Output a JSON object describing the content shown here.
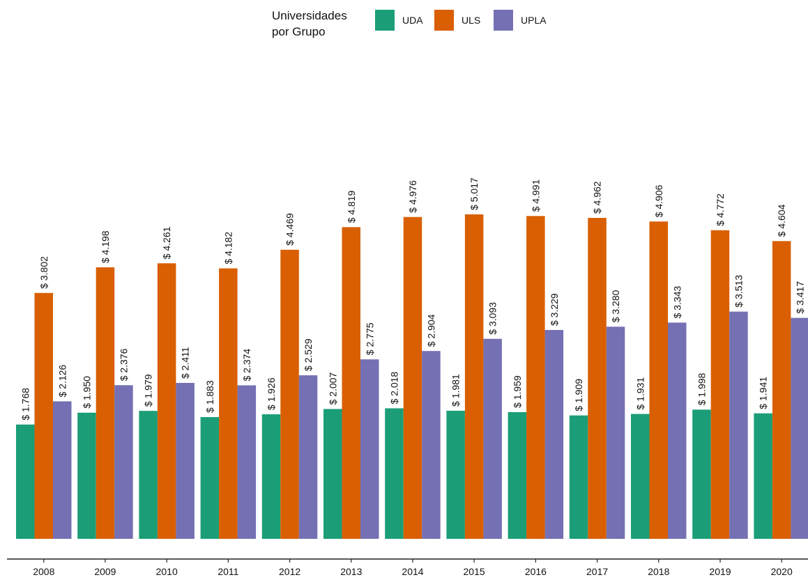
{
  "chart_data": {
    "type": "bar",
    "title": "",
    "xlabel": "",
    "ylabel": "",
    "ylim": [
      0,
      5200
    ],
    "grid": false,
    "legend": {
      "title_lines": [
        "Universidades",
        "por Grupo"
      ],
      "placement": "top-center"
    },
    "categories": [
      "2008",
      "2009",
      "2010",
      "2011",
      "2012",
      "2013",
      "2014",
      "2015",
      "2016",
      "2017",
      "2018",
      "2019",
      "2020"
    ],
    "series": [
      {
        "name": "UDA",
        "color": "#1b9e77",
        "values": [
          1768,
          1950,
          1979,
          1883,
          1926,
          2007,
          2018,
          1981,
          1959,
          1909,
          1931,
          1998,
          1941
        ],
        "labels": [
          "$ 1.768",
          "$ 1.950",
          "$ 1.979",
          "$ 1.883",
          "$ 1.926",
          "$ 2.007",
          "$ 2.018",
          "$ 1.981",
          "$ 1.959",
          "$ 1.909",
          "$ 1.931",
          "$ 1.998",
          "$ 1.941"
        ]
      },
      {
        "name": "ULS",
        "color": "#d95f02",
        "values": [
          3802,
          4198,
          4261,
          4182,
          4469,
          4819,
          4976,
          5017,
          4991,
          4962,
          4906,
          4772,
          4604
        ],
        "labels": [
          "$ 3.802",
          "$ 4.198",
          "$ 4.261",
          "$ 4.182",
          "$ 4.469",
          "$ 4.819",
          "$ 4.976",
          "$ 5.017",
          "$ 4.991",
          "$ 4.962",
          "$ 4.906",
          "$ 4.772",
          "$ 4.604"
        ]
      },
      {
        "name": "UPLA",
        "color": "#7570b3",
        "values": [
          2126,
          2376,
          2411,
          2374,
          2529,
          2775,
          2904,
          3093,
          3229,
          3280,
          3343,
          3513,
          3417
        ],
        "labels": [
          "$ 2.126",
          "$ 2.376",
          "$ 2.411",
          "$ 2.374",
          "$ 2.529",
          "$ 2.775",
          "$ 2.904",
          "$ 3.093",
          "$ 3.229",
          "$ 3.280",
          "$ 3.343",
          "$ 3.513",
          "$ 3.417"
        ]
      }
    ]
  }
}
